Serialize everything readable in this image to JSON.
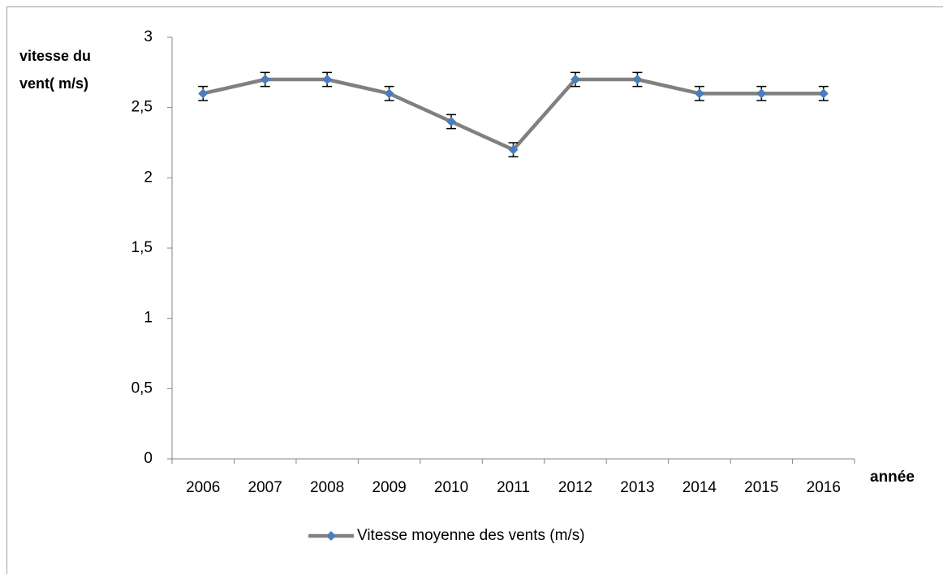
{
  "chart_data": {
    "type": "line",
    "y_label": "vitesse du vent( m/s)",
    "x_label": "année",
    "categories": [
      "2006",
      "2007",
      "2008",
      "2009",
      "2010",
      "2011",
      "2012",
      "2013",
      "2014",
      "2015",
      "2016"
    ],
    "series": [
      {
        "name": "Vitesse moyenne des vents (m/s)",
        "color": "#808080",
        "marker_color": "#4a7ebb",
        "values": [
          2.6,
          2.7,
          2.7,
          2.6,
          2.4,
          2.2,
          2.7,
          2.7,
          2.6,
          2.6,
          2.6
        ],
        "errors": [
          0.05,
          0.05,
          0.05,
          0.05,
          0.05,
          0.05,
          0.05,
          0.05,
          0.05,
          0.05,
          0.05
        ]
      }
    ],
    "ylim": [
      0,
      3
    ],
    "yticks": [
      0,
      {
        "value": 0.5,
        "label": "0,5"
      },
      1,
      {
        "value": 1.5,
        "label": "1,5"
      },
      2,
      {
        "value": 2.5,
        "label": "2,5"
      },
      3
    ],
    "grid": false,
    "legend": "bottom"
  }
}
